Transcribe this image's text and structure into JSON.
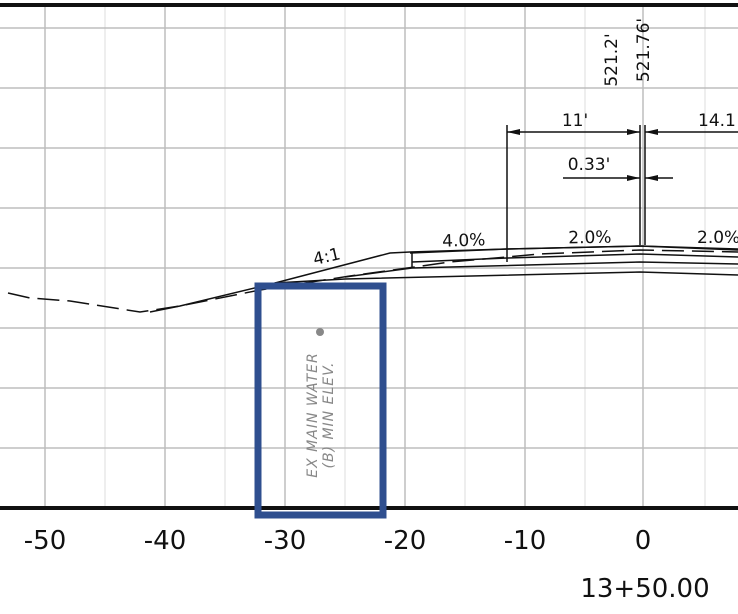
{
  "axis": {
    "labels": [
      "-50",
      "-40",
      "-30",
      "-20",
      "-10",
      "0"
    ]
  },
  "station": "13+50.00",
  "annotations": {
    "elev_left": "521.2'",
    "elev_right": "521.76'",
    "dim_left": "11'",
    "dim_right": "14.1",
    "offset": "0.33'",
    "slope_shoulder": "4.0%",
    "slope_lane_left": "2.0%",
    "slope_lane_right": "2.0%",
    "side_slope": "4:1",
    "water_line1": "EX MAIN WATER",
    "water_line2": "(B) MIN ELEV."
  }
}
